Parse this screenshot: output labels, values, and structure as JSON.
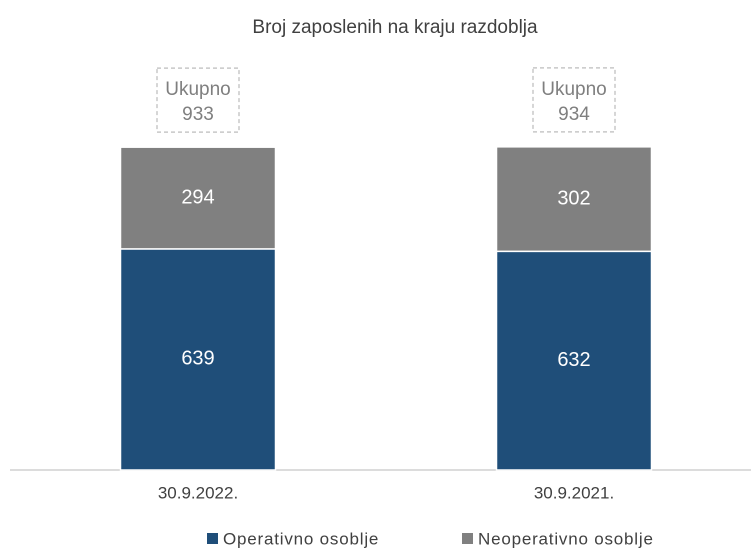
{
  "chart_data": {
    "type": "stacked_bar",
    "title": "Broj zaposlenih na kraju razdoblja",
    "categories": [
      "30.9.2022.",
      "30.9.2021."
    ],
    "series": [
      {
        "name": "Operativno osoblje",
        "color": "#1f4e79",
        "values": [
          639,
          632
        ]
      },
      {
        "name": "Neoperativno osoblje",
        "color": "#808080",
        "values": [
          294,
          302
        ]
      }
    ],
    "total_label": "Ukupno",
    "totals": [
      933,
      934
    ],
    "ylim": [
      0,
      1000
    ]
  }
}
